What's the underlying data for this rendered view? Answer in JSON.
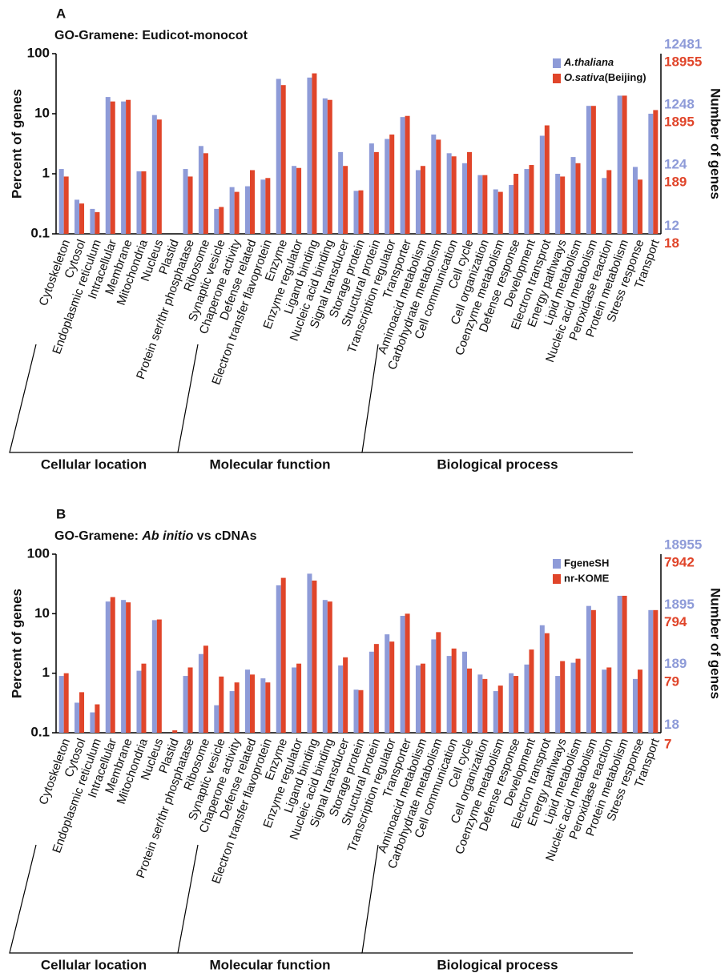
{
  "chart_data": [
    {
      "type": "bar",
      "panel_label": "A",
      "title_parts": [
        {
          "text": "GO-Gramene: Eudicot-monocot"
        }
      ],
      "categories": [
        "Cytoskeleton",
        "Cytosol",
        "Endoplasmic reticulum",
        "Intracellular",
        "Membrane",
        "Mitochondria",
        "Nucleus",
        "Plastid",
        "Protein ser/thr phosphatase",
        "Ribosome",
        "Synaptic vesicle",
        "Chaperone activity",
        "Defense related",
        "Electron transfer flavoprotein",
        "Enzyme",
        "Enzyme regulator",
        "Ligand binding",
        "Nucleic acid binding",
        "Signal transducer",
        "Storage protein",
        "Structural protein",
        "Transcription regulator",
        "Transporter",
        "Aminoacid metabolism",
        "Carbohydrate metabolism",
        "Cell communication",
        "Cell cycle",
        "Cell organization",
        "Coenzyme metabolism",
        "Defense response",
        "Development",
        "Electron transprot",
        "Energy pathways",
        "Lipid metabolism",
        "Nucleic acid metabolism",
        "Peroxidase reaction",
        "Protein metabolism",
        "Stress response",
        "Transport"
      ],
      "group_labels": [
        "Cellular location",
        "Molecular function",
        "Biological process"
      ],
      "series": [
        {
          "name": "A.thaliana",
          "color": "#8e9bd8",
          "italic": true,
          "values": [
            1.2,
            0.37,
            0.26,
            19,
            16,
            1.1,
            9.5,
            null,
            1.2,
            2.9,
            0.26,
            0.6,
            0.62,
            0.8,
            38,
            1.35,
            40,
            18,
            2.3,
            0.52,
            3.2,
            3.8,
            8.8,
            1.15,
            4.5,
            2.2,
            1.5,
            0.95,
            0.55,
            0.65,
            1.2,
            4.3,
            1.0,
            1.9,
            13.5,
            0.85,
            20,
            1.3,
            10
          ]
        },
        {
          "name": "O.sativa(Beijing)",
          "color": "#e0452a",
          "italic": true,
          "values": [
            0.9,
            0.32,
            0.23,
            16,
            17,
            1.1,
            8,
            null,
            0.9,
            2.2,
            0.28,
            0.5,
            1.15,
            0.85,
            30,
            1.25,
            47,
            17,
            1.35,
            0.53,
            2.3,
            4.5,
            9.2,
            1.35,
            3.7,
            1.95,
            2.3,
            0.95,
            0.5,
            1.0,
            1.4,
            6.4,
            0.9,
            1.5,
            13.5,
            1.15,
            20,
            0.8,
            11.5
          ]
        }
      ],
      "ylim": [
        0.1,
        100
      ],
      "yticks": [
        100,
        10,
        1,
        0.1
      ],
      "log_scale": true,
      "ylabel": "Percent of genes",
      "y2label": "Number of genes",
      "y2axes": [
        {
          "color": "#8e9bd8",
          "ylim": [
            12.481,
            12481
          ],
          "ticks": [
            12481,
            1248,
            124,
            12
          ]
        },
        {
          "color": "#e0452a",
          "ylim": [
            18.955,
            18955
          ],
          "ticks": [
            18955,
            1895,
            189,
            18
          ]
        }
      ],
      "legend": "upper right"
    },
    {
      "type": "bar",
      "panel_label": "B",
      "title_parts": [
        {
          "text": "GO-Gramene: "
        },
        {
          "text": "Ab initio",
          "italic": true
        },
        {
          "text": " vs cDNAs"
        }
      ],
      "categories": [
        "Cytoskeleton",
        "Cytosol",
        "Endoplasmic reticulum",
        "Intracellular",
        "Membrane",
        "Mitochondria",
        "Nucleus",
        "Plastid",
        "Protein ser/thr phosphatase",
        "Ribosome",
        "Synaptic vesicle",
        "Chaperone activity",
        "Defense related",
        "Electron transfer flavoprotein",
        "Enzyme",
        "Enzyme regulator",
        "Ligand binding",
        "Nucleic acid binding",
        "Signal transducer",
        "Storage protein",
        "Structural protein",
        "Transcription regulator",
        "Transporter",
        "Aminoacid metabolism",
        "Carbohydrate metabolism",
        "Cell communication",
        "Cell cycle",
        "Cell organization",
        "Coenzyme metabolism",
        "Defense response",
        "Development",
        "Electron transprot",
        "Energy pathways",
        "Lipid metabolism",
        "Nucleic acid metabolism",
        "Peroxidase reaction",
        "Protein metabolism",
        "Stress response",
        "Transport"
      ],
      "group_labels": [
        "Cellular location",
        "Molecular function",
        "Biological process"
      ],
      "series": [
        {
          "name": "FgeneSH",
          "color": "#8e9bd8",
          "values": [
            0.9,
            0.32,
            0.22,
            16,
            17,
            1.1,
            7.8,
            null,
            0.9,
            2.1,
            0.29,
            0.5,
            1.15,
            0.82,
            30,
            1.25,
            47,
            17,
            1.35,
            0.53,
            2.3,
            4.5,
            9.2,
            1.35,
            3.7,
            1.95,
            2.3,
            0.95,
            0.5,
            1.0,
            1.4,
            6.4,
            0.9,
            1.5,
            13.5,
            1.15,
            20,
            0.8,
            11.5
          ]
        },
        {
          "name": "nr-KOME",
          "color": "#e0452a",
          "values": [
            1.0,
            0.48,
            0.3,
            19,
            15.5,
            1.45,
            8,
            0.11,
            1.25,
            2.9,
            0.88,
            0.7,
            0.95,
            0.7,
            40,
            1.45,
            36,
            16,
            1.85,
            0.52,
            3.1,
            3.4,
            10,
            1.45,
            4.9,
            2.6,
            1.2,
            0.8,
            0.62,
            0.9,
            2.5,
            4.7,
            1.6,
            1.75,
            11.5,
            1.25,
            20,
            1.15,
            11.5
          ]
        }
      ],
      "ylim": [
        0.1,
        100
      ],
      "yticks": [
        100,
        10,
        1,
        0.1
      ],
      "log_scale": true,
      "ylabel": "Percent of genes",
      "y2label": "Number of genes",
      "y2axes": [
        {
          "color": "#8e9bd8",
          "ylim": [
            18.955,
            18955
          ],
          "ticks": [
            18955,
            1895,
            189,
            18
          ]
        },
        {
          "color": "#e0452a",
          "ylim": [
            7.942,
            7942
          ],
          "ticks": [
            7942,
            794,
            79,
            7
          ]
        }
      ],
      "legend": "upper right"
    }
  ]
}
